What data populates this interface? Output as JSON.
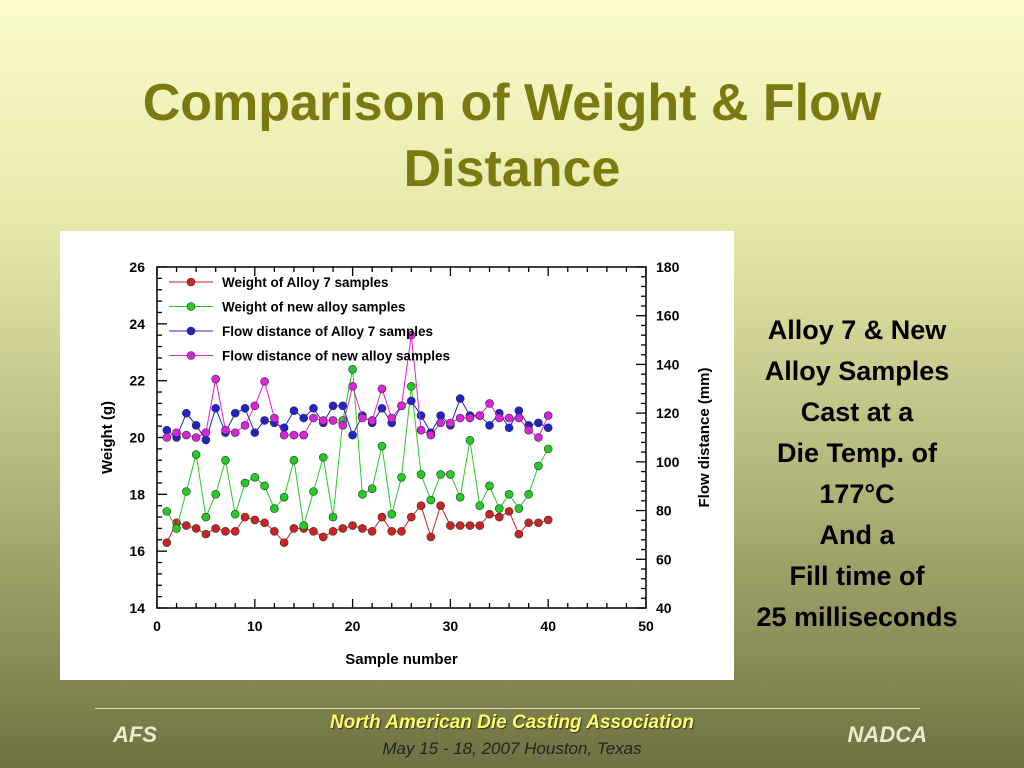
{
  "slide": {
    "title": "Comparison of Weight & Flow\nDistance",
    "side_note": [
      "Alloy 7 & New",
      "Alloy Samples",
      "Cast at a",
      "Die Temp. of",
      "177°C",
      "And a",
      "Fill time of",
      "25 milliseconds"
    ],
    "footer": {
      "left": "AFS",
      "right": "NADCA",
      "organization": "North American Die Casting Association",
      "date_location": "May 15 - 18, 2007  Houston, Texas"
    }
  },
  "chart_data": {
    "type": "scatter",
    "xlabel": "Sample number",
    "ylabel": "Weight (g)",
    "y2label": "Flow distance (mm)",
    "xlim": [
      0,
      50
    ],
    "ylim": [
      14,
      26
    ],
    "y2lim": [
      40,
      180
    ],
    "x_ticks": [
      0,
      10,
      20,
      30,
      40,
      50
    ],
    "y_ticks": [
      14,
      16,
      18,
      20,
      22,
      24,
      26
    ],
    "y2_ticks": [
      40,
      60,
      80,
      100,
      120,
      140,
      160,
      180
    ],
    "legend_position": "top-left",
    "series": [
      {
        "name": "Weight of Alloy 7 samples",
        "axis": "left",
        "color": "#cc2222",
        "x": [
          1,
          2,
          3,
          4,
          5,
          6,
          7,
          8,
          9,
          10,
          11,
          12,
          13,
          14,
          15,
          16,
          17,
          18,
          19,
          20,
          21,
          22,
          23,
          24,
          25,
          26,
          27,
          28,
          29,
          30,
          31,
          32,
          33,
          34,
          35,
          36,
          37,
          38,
          39,
          40
        ],
        "values": [
          16.3,
          17.0,
          16.9,
          16.8,
          16.6,
          16.8,
          16.7,
          16.7,
          17.2,
          17.1,
          17.0,
          16.7,
          16.3,
          16.8,
          16.8,
          16.7,
          16.5,
          16.7,
          16.8,
          16.9,
          16.8,
          16.7,
          17.2,
          16.7,
          16.7,
          17.2,
          17.6,
          16.5,
          17.6,
          16.9,
          16.9,
          16.9,
          16.9,
          17.3,
          17.2,
          17.4,
          16.6,
          17.0,
          17.0,
          17.1
        ]
      },
      {
        "name": "Weight of new alloy samples",
        "axis": "left",
        "color": "#22cc22",
        "x": [
          1,
          2,
          3,
          4,
          5,
          6,
          7,
          8,
          9,
          10,
          11,
          12,
          13,
          14,
          15,
          16,
          17,
          18,
          19,
          20,
          21,
          22,
          23,
          24,
          25,
          26,
          27,
          28,
          29,
          30,
          31,
          32,
          33,
          34,
          35,
          36,
          37,
          38,
          39,
          40
        ],
        "values": [
          17.4,
          16.8,
          18.1,
          19.4,
          17.2,
          18.0,
          19.2,
          17.3,
          18.4,
          18.6,
          18.3,
          17.5,
          17.9,
          19.2,
          16.9,
          18.1,
          19.3,
          17.2,
          20.6,
          22.4,
          18.0,
          18.2,
          19.7,
          17.3,
          18.6,
          21.8,
          18.7,
          17.8,
          18.7,
          18.7,
          17.9,
          19.9,
          17.6,
          18.3,
          17.5,
          18.0,
          17.5,
          18.0,
          19.0,
          19.6
        ]
      },
      {
        "name": "Flow distance of Alloy 7 samples",
        "axis": "right",
        "color": "#2222cc",
        "x": [
          1,
          2,
          3,
          4,
          5,
          6,
          7,
          8,
          9,
          10,
          11,
          12,
          13,
          14,
          15,
          16,
          17,
          18,
          19,
          20,
          21,
          22,
          23,
          24,
          25,
          26,
          27,
          28,
          29,
          30,
          31,
          32,
          33,
          34,
          35,
          36,
          37,
          38,
          39,
          40
        ],
        "values": [
          113,
          110,
          120,
          115,
          109,
          122,
          112,
          120,
          122,
          112,
          117,
          116,
          114,
          121,
          118,
          122,
          116,
          123,
          123,
          111,
          119,
          116,
          122,
          116,
          123,
          125,
          119,
          112,
          119,
          115,
          126,
          119,
          119,
          115,
          120,
          114,
          121,
          115,
          116,
          114
        ]
      },
      {
        "name": "Flow distance of new alloy samples",
        "axis": "right",
        "color": "#dd22dd",
        "x": [
          1,
          2,
          3,
          4,
          5,
          6,
          7,
          8,
          9,
          10,
          11,
          12,
          13,
          14,
          15,
          16,
          17,
          18,
          19,
          20,
          21,
          22,
          23,
          24,
          25,
          26,
          27,
          28,
          29,
          30,
          31,
          32,
          33,
          34,
          35,
          36,
          37,
          38,
          39,
          40
        ],
        "values": [
          110,
          112,
          111,
          110,
          112,
          134,
          113,
          112,
          115,
          123,
          133,
          118,
          111,
          111,
          111,
          118,
          117,
          117,
          115,
          131,
          118,
          117,
          130,
          118,
          123,
          152,
          113,
          111,
          116,
          116,
          118,
          118,
          119,
          124,
          118,
          118,
          118,
          113,
          110,
          119
        ]
      }
    ]
  }
}
